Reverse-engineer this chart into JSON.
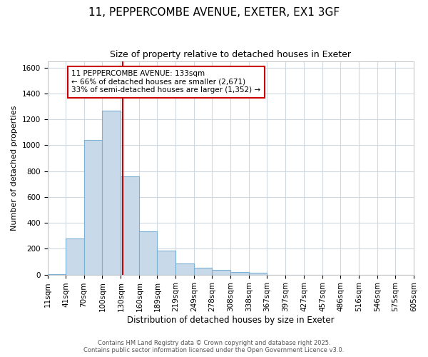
{
  "title_line1": "11, PEPPERCOMBE AVENUE, EXETER, EX1 3GF",
  "title_line2": "Size of property relative to detached houses in Exeter",
  "xlabel": "Distribution of detached houses by size in Exeter",
  "ylabel": "Number of detached properties",
  "bar_color": "#c8daea",
  "bar_edge_color": "#7bafd4",
  "background_color": "#ffffff",
  "grid_color": "#d0d8e0",
  "redline_color": "#cc0000",
  "redline_x": 133,
  "annotation_text": "11 PEPPERCOMBE AVENUE: 133sqm\n← 66% of detached houses are smaller (2,671)\n33% of semi-detached houses are larger (1,352) →",
  "annotation_box_facecolor": "#ffffff",
  "annotation_box_edgecolor": "#cc0000",
  "ylim": [
    0,
    1650
  ],
  "yticks": [
    0,
    200,
    400,
    600,
    800,
    1000,
    1200,
    1400,
    1600
  ],
  "bin_edges": [
    11,
    41,
    70,
    100,
    130,
    160,
    189,
    219,
    249,
    278,
    308,
    338,
    367,
    397,
    427,
    457,
    486,
    516,
    546,
    575,
    605
  ],
  "bar_heights": [
    5,
    280,
    1040,
    1265,
    760,
    335,
    185,
    85,
    55,
    35,
    22,
    12,
    0,
    0,
    0,
    0,
    0,
    0,
    0,
    0
  ],
  "fig_facecolor": "#ffffff",
  "footnote1": "Contains HM Land Registry data © Crown copyright and database right 2025.",
  "footnote2": "Contains public sector information licensed under the Open Government Licence v3.0.",
  "title_fontsize": 11,
  "subtitle_fontsize": 9,
  "tick_fontsize": 7.5,
  "ylabel_fontsize": 8,
  "xlabel_fontsize": 8.5
}
